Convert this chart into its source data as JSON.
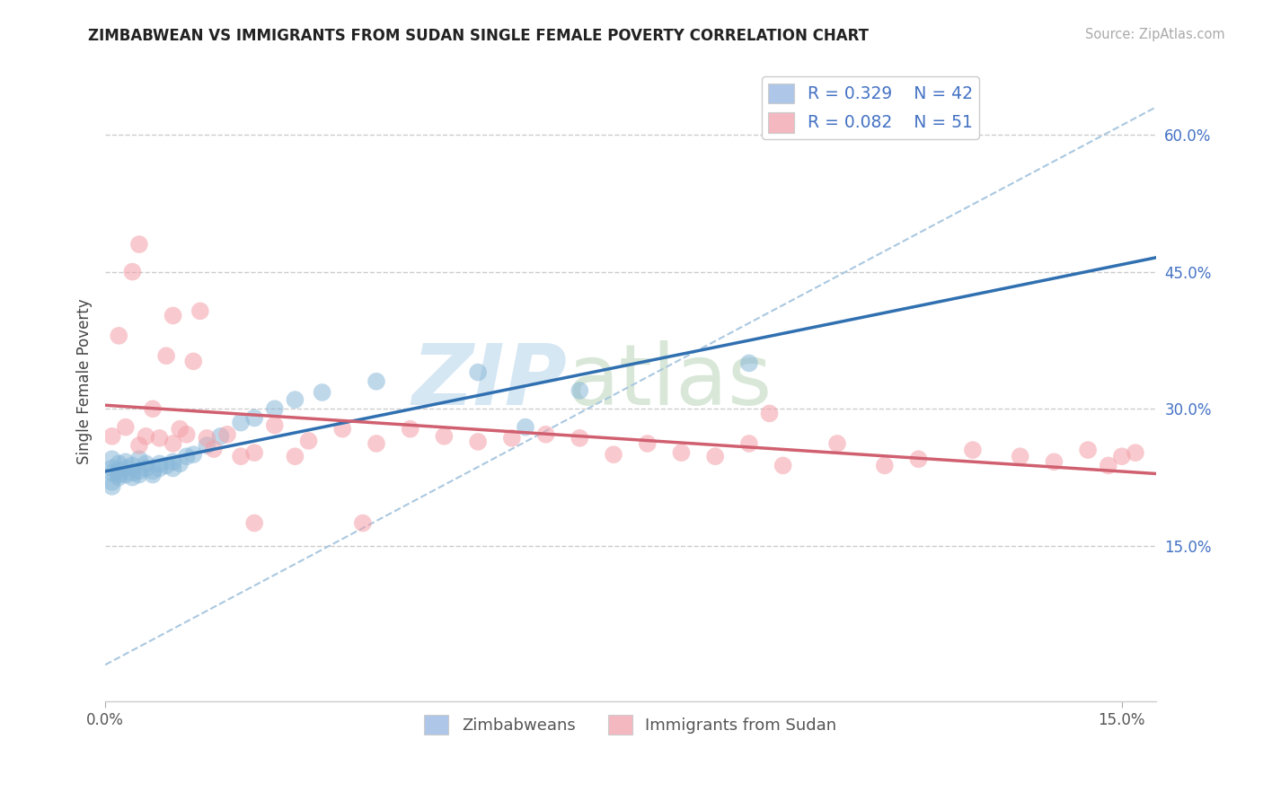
{
  "title": "ZIMBABWEAN VS IMMIGRANTS FROM SUDAN SINGLE FEMALE POVERTY CORRELATION CHART",
  "source": "Source: ZipAtlas.com",
  "ylabel": "Single Female Poverty",
  "xlim": [
    0.0,
    0.155
  ],
  "ylim": [
    -0.02,
    0.68
  ],
  "xtick_positions": [
    0.0,
    0.15
  ],
  "xtick_labels": [
    "0.0%",
    "15.0%"
  ],
  "ytick_positions_right": [
    0.15,
    0.3,
    0.45,
    0.6
  ],
  "ytick_labels_right": [
    "15.0%",
    "30.0%",
    "45.0%",
    "60.0%"
  ],
  "legend_r1": "R = 0.329",
  "legend_n1": "N = 42",
  "legend_r2": "R = 0.082",
  "legend_n2": "N = 51",
  "color_zim": "#89b8d9",
  "color_sud": "#f4a0a8",
  "line_color_zim": "#3070b0",
  "line_color_sud": "#d06070",
  "background_color": "#ffffff",
  "grid_color": "#cccccc",
  "zim_x": [
    0.001,
    0.001,
    0.001,
    0.001,
    0.001,
    0.002,
    0.002,
    0.002,
    0.002,
    0.003,
    0.003,
    0.003,
    0.004,
    0.004,
    0.004,
    0.005,
    0.005,
    0.005,
    0.006,
    0.006,
    0.007,
    0.007,
    0.008,
    0.008,
    0.009,
    0.01,
    0.01,
    0.011,
    0.012,
    0.013,
    0.015,
    0.017,
    0.02,
    0.022,
    0.025,
    0.028,
    0.032,
    0.04,
    0.055,
    0.062,
    0.07,
    0.095
  ],
  "zim_y": [
    0.23,
    0.245,
    0.22,
    0.235,
    0.215,
    0.228,
    0.24,
    0.225,
    0.232,
    0.235,
    0.228,
    0.242,
    0.23,
    0.238,
    0.225,
    0.232,
    0.245,
    0.228,
    0.24,
    0.235,
    0.232,
    0.228,
    0.24,
    0.235,
    0.238,
    0.242,
    0.235,
    0.24,
    0.248,
    0.25,
    0.26,
    0.27,
    0.285,
    0.29,
    0.3,
    0.31,
    0.318,
    0.33,
    0.34,
    0.28,
    0.32,
    0.35
  ],
  "sud_x": [
    0.001,
    0.002,
    0.003,
    0.004,
    0.005,
    0.005,
    0.006,
    0.007,
    0.008,
    0.009,
    0.01,
    0.01,
    0.011,
    0.012,
    0.013,
    0.014,
    0.015,
    0.016,
    0.018,
    0.02,
    0.022,
    0.025,
    0.028,
    0.03,
    0.035,
    0.04,
    0.045,
    0.05,
    0.055,
    0.06,
    0.065,
    0.07,
    0.075,
    0.08,
    0.085,
    0.09,
    0.095,
    0.1,
    0.108,
    0.115,
    0.12,
    0.128,
    0.135,
    0.14,
    0.145,
    0.148,
    0.15,
    0.152,
    0.098,
    0.038,
    0.022
  ],
  "sud_y": [
    0.27,
    0.38,
    0.28,
    0.45,
    0.26,
    0.48,
    0.27,
    0.3,
    0.268,
    0.358,
    0.402,
    0.262,
    0.278,
    0.272,
    0.352,
    0.407,
    0.268,
    0.256,
    0.272,
    0.248,
    0.252,
    0.282,
    0.248,
    0.265,
    0.278,
    0.262,
    0.278,
    0.27,
    0.264,
    0.268,
    0.272,
    0.268,
    0.25,
    0.262,
    0.252,
    0.248,
    0.262,
    0.238,
    0.262,
    0.238,
    0.245,
    0.255,
    0.248,
    0.242,
    0.255,
    0.238,
    0.248,
    0.252,
    0.295,
    0.175,
    0.175
  ]
}
